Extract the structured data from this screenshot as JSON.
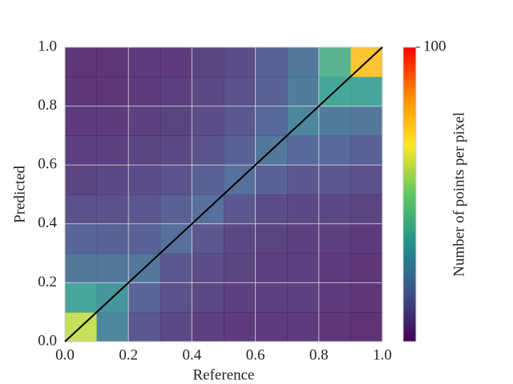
{
  "chart_data": {
    "type": "heatmap",
    "xlabel": "Reference",
    "ylabel": "Predicted",
    "xbins": [
      0,
      0.1,
      0.2,
      0.3,
      0.4,
      0.5,
      0.6,
      0.7,
      0.8,
      0.9,
      1
    ],
    "ybins": [
      0,
      0.1,
      0.2,
      0.3,
      0.4,
      0.5,
      0.6,
      0.7,
      0.8,
      0.9,
      1
    ],
    "counts": [
      [
        60,
        25,
        12,
        8,
        6,
        5,
        5,
        5,
        4,
        3
      ],
      [
        35,
        30,
        15,
        10,
        8,
        6,
        6,
        6,
        5,
        4
      ],
      [
        20,
        20,
        20,
        12,
        9,
        7,
        6,
        6,
        5,
        4
      ],
      [
        15,
        14,
        14,
        18,
        12,
        8,
        7,
        6,
        6,
        5
      ],
      [
        10,
        10,
        12,
        14,
        18,
        12,
        9,
        8,
        8,
        7
      ],
      [
        7,
        8,
        9,
        11,
        14,
        18,
        14,
        12,
        12,
        10
      ],
      [
        6,
        6,
        7,
        8,
        11,
        14,
        20,
        16,
        16,
        14
      ],
      [
        5,
        5,
        6,
        7,
        9,
        12,
        16,
        25,
        22,
        20
      ],
      [
        4,
        4,
        5,
        6,
        8,
        10,
        14,
        22,
        35,
        35
      ],
      [
        4,
        4,
        5,
        5,
        7,
        9,
        14,
        20,
        40,
        75
      ]
    ],
    "xlim": [
      0,
      1
    ],
    "ylim": [
      0,
      1
    ],
    "xticks": [
      {
        "value": 0,
        "label": "0.0"
      },
      0.2,
      0.4,
      0.6,
      0.8,
      {
        "value": 1,
        "label": "1.0"
      }
    ],
    "yticks": [
      {
        "value": 0,
        "label": "0.0"
      },
      0.2,
      0.4,
      0.6,
      0.8,
      {
        "value": 1,
        "label": "1.0"
      }
    ],
    "grid": true,
    "line": {
      "x": [
        0,
        1
      ],
      "y": [
        0,
        1
      ],
      "color": "#000000"
    },
    "colormap": [
      "#440154",
      "#3b528b",
      "#21918c",
      "#5ec962",
      "#fde725",
      "#ff8c00",
      "#ff0000"
    ],
    "colorbar": {
      "label": "Number of points per pixel",
      "lim": [
        0,
        100
      ],
      "ticks": [
        100
      ]
    }
  }
}
